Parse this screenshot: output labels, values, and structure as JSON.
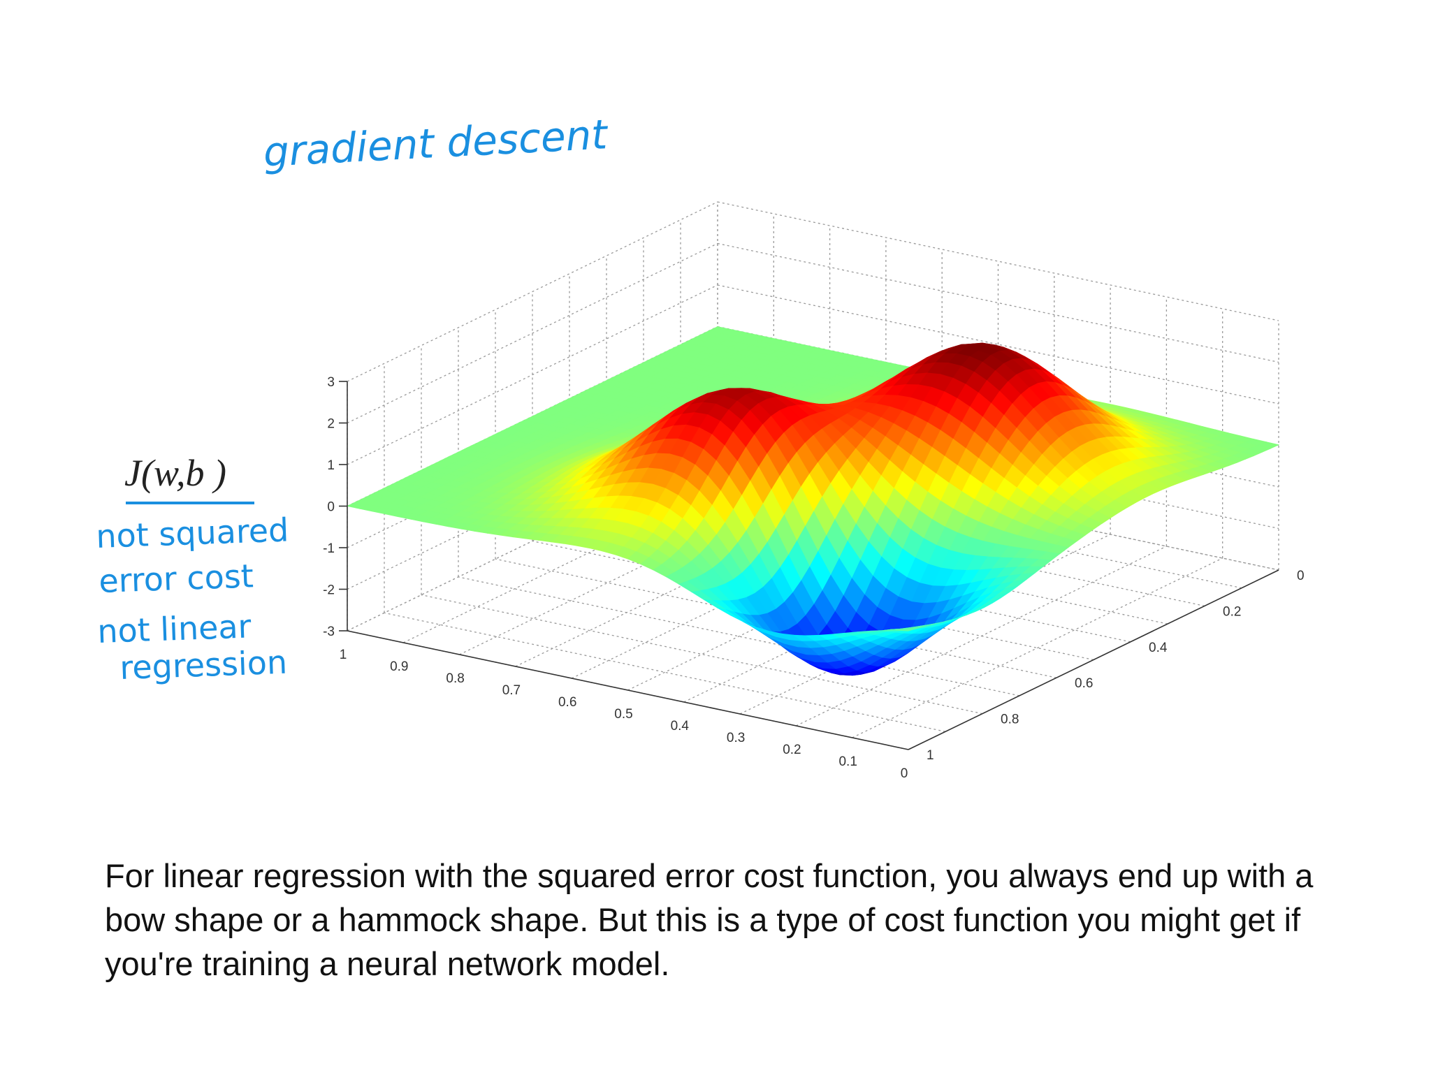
{
  "annotations": {
    "title": "gradient descent",
    "cost_label": "J(w,b )",
    "note_line1": "not squared",
    "note_line2": "error cost",
    "note_line3": "not linear",
    "note_line4": "regression"
  },
  "caption": "For linear regression with the squared error cost function, you always end up with a bow shape or a hammock shape. But this is a type of cost function you might get if you're training a neural network model.",
  "colors": {
    "annotation": "#1a8fe0",
    "surface_colormap": "jet",
    "text": "#111111"
  },
  "chart_data": {
    "type": "surface",
    "title": "",
    "xlabel": "",
    "ylabel": "",
    "zlabel": "",
    "x_ticks": [
      "0.9",
      "0.8",
      "0.7",
      "0.6",
      "0.5",
      "0.4",
      "0.3",
      "0.2",
      "0.1",
      "0",
      "1"
    ],
    "y_ticks": [
      "0",
      "0.2",
      "0.4",
      "0.6",
      "0.8",
      "1"
    ],
    "z_ticks": [
      "3",
      "2",
      "1",
      "0",
      "-1",
      "-2",
      "-3"
    ],
    "xlim": [
      0,
      1
    ],
    "ylim": [
      0,
      1
    ],
    "zlim": [
      -3,
      3
    ],
    "grid": true,
    "colormap": "jet",
    "features": [
      {
        "kind": "peak",
        "x": 0.5,
        "y": 0.3,
        "z": 3
      },
      {
        "kind": "peak",
        "x": 0.3,
        "y": 0.65,
        "z": 3
      },
      {
        "kind": "valley",
        "x": 0.25,
        "y": 0.2,
        "z": -3
      }
    ]
  }
}
